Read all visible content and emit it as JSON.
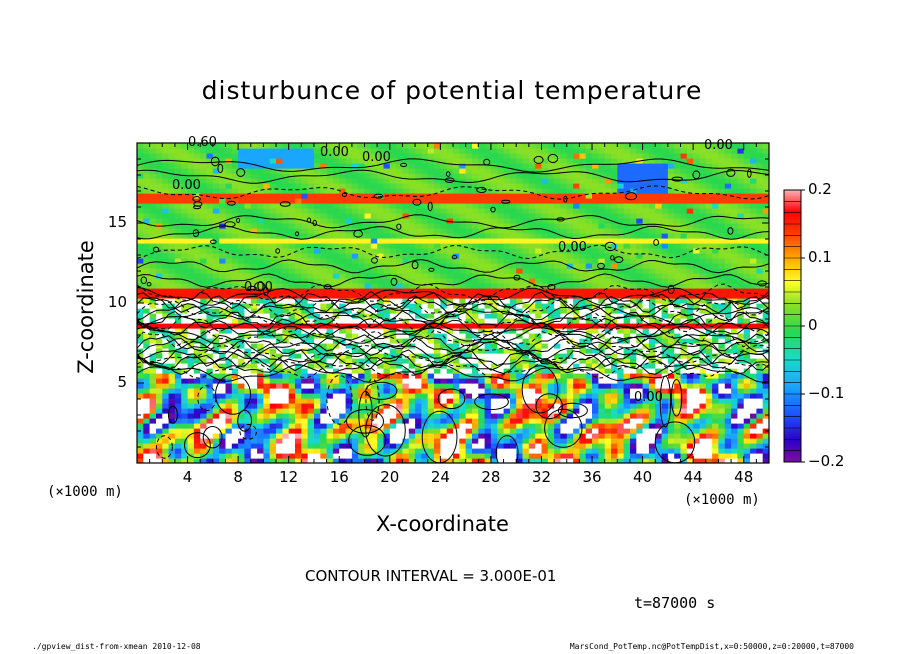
{
  "chart_data": {
    "type": "heatmap",
    "title": "disturbunce of potential temperature",
    "xlabel": "X-coordinate",
    "ylabel": "Z-coordinate",
    "x_unit": "(×1000 m)",
    "y_unit": "(×1000 m)",
    "xlim": [
      0,
      50
    ],
    "ylim": [
      0,
      20
    ],
    "x_ticks": [
      4,
      8,
      12,
      16,
      20,
      24,
      28,
      32,
      36,
      40,
      44,
      48
    ],
    "y_ticks": [
      5,
      10,
      15
    ],
    "colorbar": {
      "range": [
        -0.2,
        0.2
      ],
      "tick_labels": [
        "0.2",
        "0.1",
        "0",
        "−0.1",
        "−0.2"
      ],
      "tick_values": [
        0.2,
        0.1,
        0,
        -0.1,
        -0.2
      ]
    },
    "contour_labels": [
      "0.60",
      "0.00",
      "0.00",
      "0.00",
      "0.00",
      "0.00",
      "0.00",
      "0.00"
    ],
    "contour_interval": "CONTOUR INTERVAL = 3.000E-01",
    "time": "t=87000 s",
    "footer_left": "./gpview_dist-from-xmean  2010-12-08",
    "footer_right": "MarsCond_PotTemp.nc@PotTempDist,x=0:50000,z=0:20000,t=87000"
  }
}
